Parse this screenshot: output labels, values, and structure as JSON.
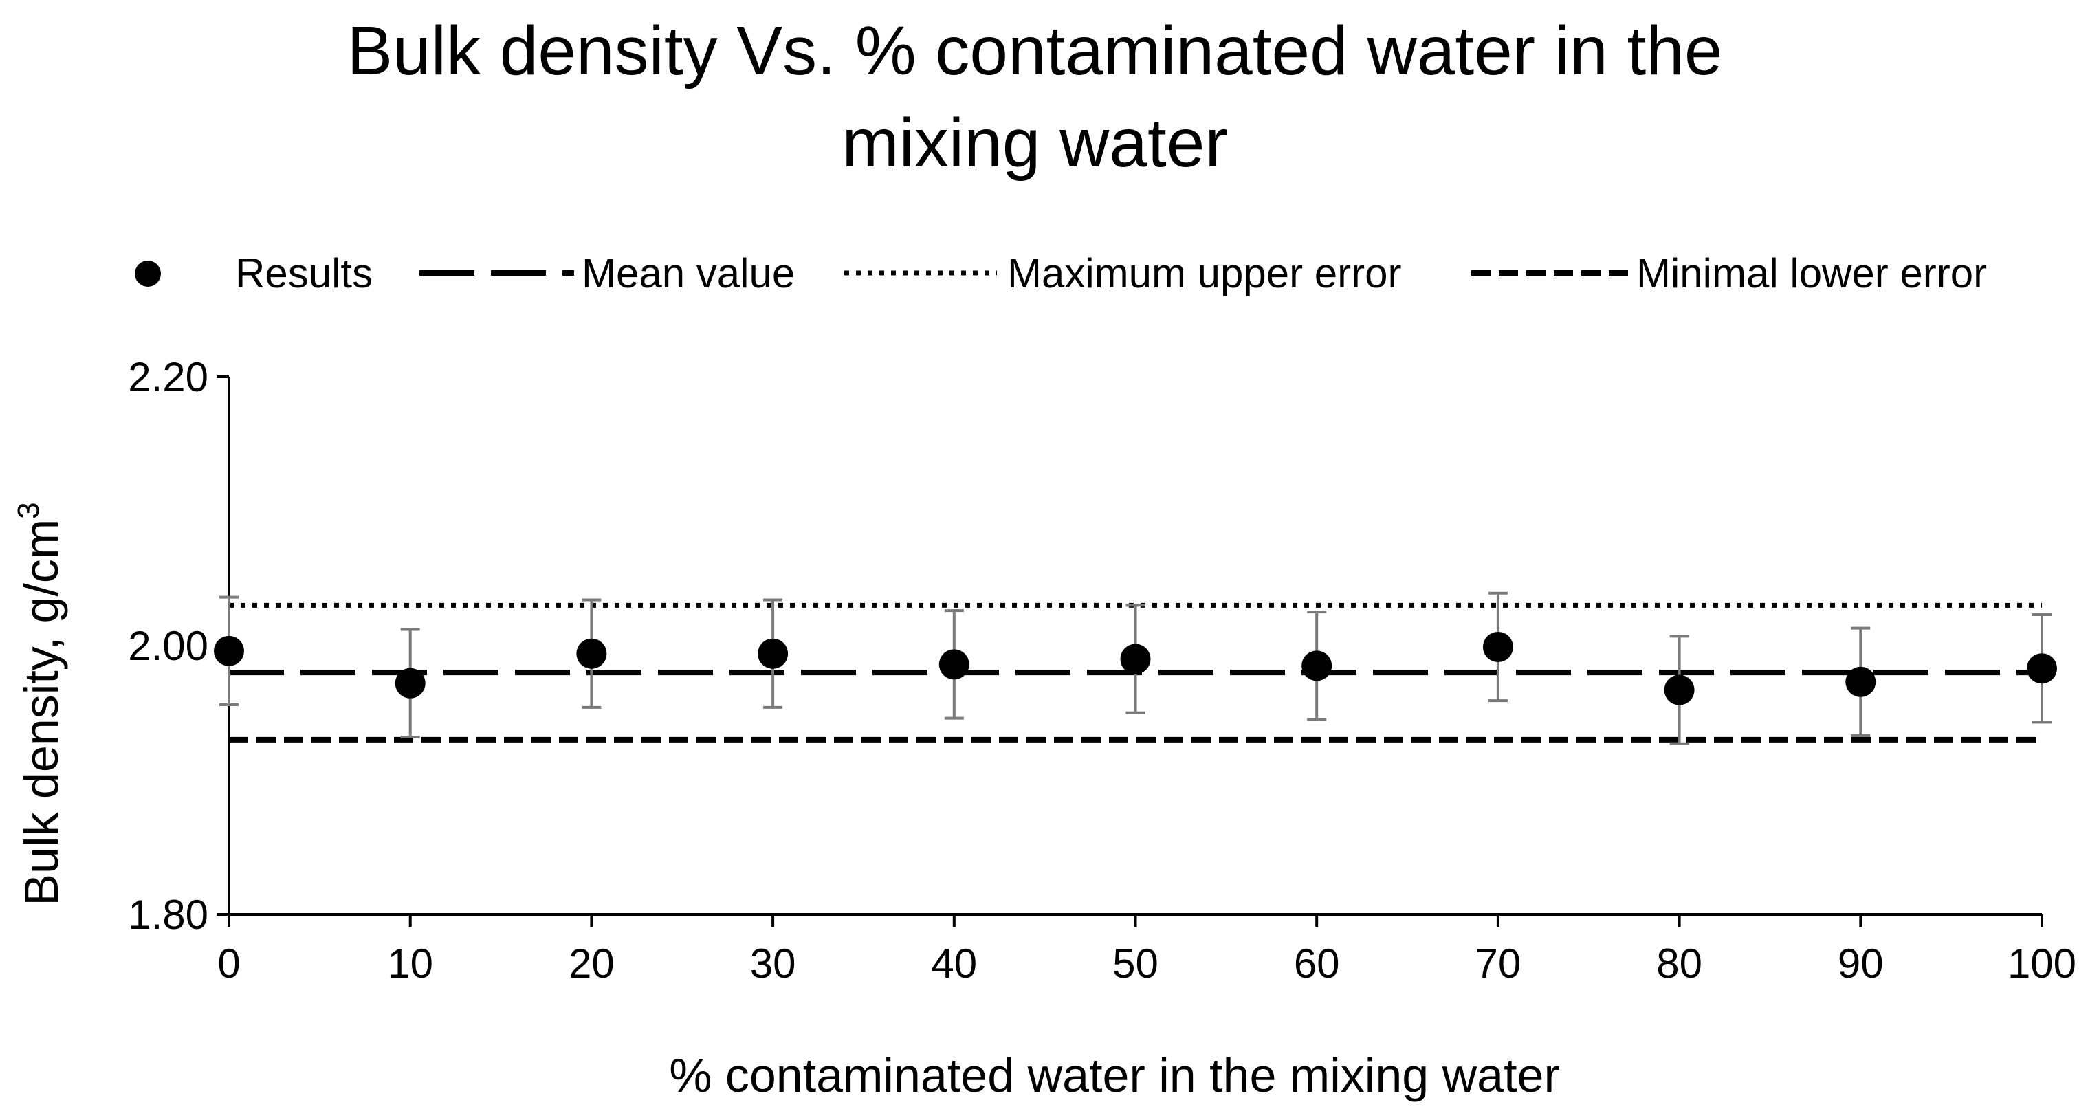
{
  "chart_data": {
    "type": "scatter",
    "title_lines": [
      "Bulk density Vs. % contaminated water in the",
      "mixing water"
    ],
    "xlabel": "% contaminated water in the mixing water",
    "ylabel": "Bulk density, g/cm",
    "ylabel_superscript": "3",
    "xlim": [
      0,
      100
    ],
    "ylim": [
      1.8,
      2.2
    ],
    "x_ticks": [
      "0",
      "10",
      "20",
      "30",
      "40",
      "50",
      "60",
      "70",
      "80",
      "90",
      "100"
    ],
    "y_ticks": [
      "2.20",
      "2.00",
      "1.80"
    ],
    "y_tick_values": [
      2.2,
      2.0,
      1.8
    ],
    "legend": {
      "position": "top",
      "entries": [
        "Results",
        "Mean value",
        "Maximum upper error",
        "Minimal lower error"
      ]
    },
    "results": {
      "x": [
        0,
        10,
        20,
        30,
        40,
        50,
        60,
        70,
        80,
        90,
        100
      ],
      "y": [
        1.996,
        1.972,
        1.994,
        1.994,
        1.986,
        1.99,
        1.985,
        1.999,
        1.967,
        1.973,
        1.983
      ],
      "err_low": [
        1.956,
        1.932,
        1.954,
        1.954,
        1.946,
        1.95,
        1.945,
        1.959,
        1.927,
        1.933,
        1.943
      ],
      "err_high": [
        2.036,
        2.012,
        2.034,
        2.034,
        2.026,
        2.03,
        2.025,
        2.039,
        2.007,
        2.013,
        2.023
      ]
    },
    "mean_value": 1.98,
    "max_upper_error": 2.03,
    "min_lower_error": 1.93
  }
}
